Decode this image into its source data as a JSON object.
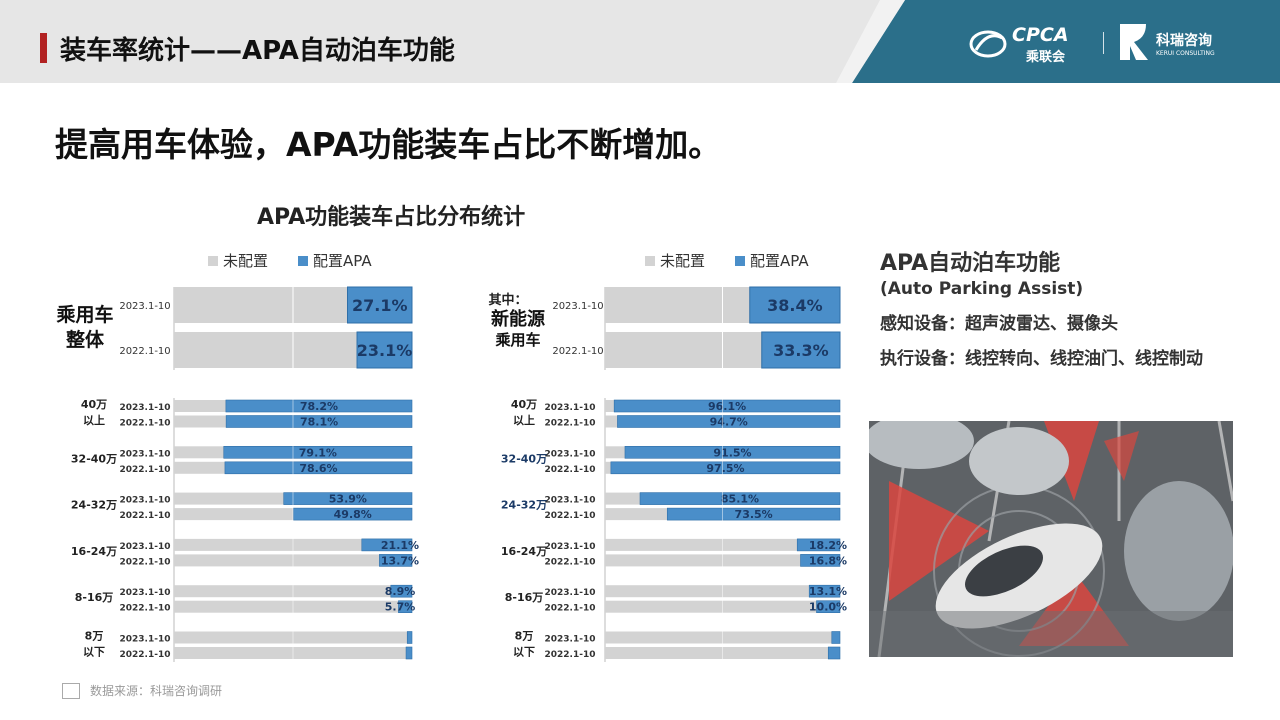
{
  "header": {
    "title": "装车率统计——APA自动泊车功能",
    "logo_cpca": "CPCA",
    "logo_cpca_sub": "乘联会",
    "logo_kerui": "科瑞咨询",
    "logo_kerui_sub": "KERUI CONSULTING"
  },
  "headline": "提高用车体验，APA功能装车占比不断增加。",
  "chart_title": "APA功能装车占比分布统计",
  "legend": {
    "not_configured": "未配置",
    "configured": "配置APA"
  },
  "colors": {
    "configured": "#4a8ec9",
    "not_configured": "#d3d3d3",
    "header_bg": "#e6e6e6",
    "header_teal": "#2b6f8a",
    "accent": "#b22222"
  },
  "info": {
    "title": "APA自动泊车功能",
    "subtitle": "(Auto Parking Assist)",
    "sensing": "感知设备：超声波雷达、摄像头",
    "actuation": "执行设备：线控转向、线控油门、线控制动"
  },
  "footer": {
    "source": "数据来源：科瑞咨询调研"
  },
  "chart_data": [
    {
      "type": "bar",
      "orientation": "horizontal",
      "stacked_percent": true,
      "group_label": [
        "乘用车",
        "整体"
      ],
      "series": [
        {
          "name": "未配置"
        },
        {
          "name": "配置APA"
        }
      ],
      "overall": [
        {
          "period": "2023.1-10",
          "value": 27.1,
          "label": "27.1%"
        },
        {
          "period": "2022.1-10",
          "value": 23.1,
          "label": "23.1%"
        }
      ],
      "segments": [
        {
          "name": [
            "40万",
            "以上"
          ],
          "rows": [
            {
              "period": "2023.1-10",
              "value": 78.2,
              "label": "78.2%"
            },
            {
              "period": "2022.1-10",
              "value": 78.1,
              "label": "78.1%"
            }
          ]
        },
        {
          "name": [
            "32-40万"
          ],
          "rows": [
            {
              "period": "2023.1-10",
              "value": 79.1,
              "label": "79.1%"
            },
            {
              "period": "2022.1-10",
              "value": 78.6,
              "label": "78.6%"
            }
          ]
        },
        {
          "name": [
            "24-32万"
          ],
          "rows": [
            {
              "period": "2023.1-10",
              "value": 53.9,
              "label": "53.9%"
            },
            {
              "period": "2022.1-10",
              "value": 49.8,
              "label": "49.8%"
            }
          ]
        },
        {
          "name": [
            "16-24万"
          ],
          "rows": [
            {
              "period": "2023.1-10",
              "value": 21.1,
              "label": "21.1%"
            },
            {
              "period": "2022.1-10",
              "value": 13.7,
              "label": "13.7%"
            }
          ]
        },
        {
          "name": [
            "8-16万"
          ],
          "rows": [
            {
              "period": "2023.1-10",
              "value": 8.9,
              "label": "8.9%"
            },
            {
              "period": "2022.1-10",
              "value": 5.7,
              "label": "5.7%"
            }
          ]
        },
        {
          "name": [
            "8万",
            "以下"
          ],
          "rows": [
            {
              "period": "2023.1-10",
              "value": 2.0,
              "label": ""
            },
            {
              "period": "2022.1-10",
              "value": 2.5,
              "label": ""
            }
          ]
        }
      ]
    },
    {
      "type": "bar",
      "orientation": "horizontal",
      "stacked_percent": true,
      "group_prefix": "其中：",
      "group_label": [
        "新能源",
        "乘用车"
      ],
      "series": [
        {
          "name": "未配置"
        },
        {
          "name": "配置APA"
        }
      ],
      "overall": [
        {
          "period": "2023.1-10",
          "value": 38.4,
          "label": "38.4%"
        },
        {
          "period": "2022.1-10",
          "value": 33.3,
          "label": "33.3%"
        }
      ],
      "segments": [
        {
          "name": [
            "40万",
            "以上"
          ],
          "rows": [
            {
              "period": "2023.1-10",
              "value": 96.1,
              "label": "96.1%"
            },
            {
              "period": "2022.1-10",
              "value": 94.7,
              "label": "94.7%"
            }
          ]
        },
        {
          "name": [
            "32-40万"
          ],
          "rows": [
            {
              "period": "2023.1-10",
              "value": 91.5,
              "label": "91.5%"
            },
            {
              "period": "2022.1-10",
              "value": 97.5,
              "label": "97.5%"
            }
          ]
        },
        {
          "name": [
            "24-32万"
          ],
          "rows": [
            {
              "period": "2023.1-10",
              "value": 85.1,
              "label": "85.1%"
            },
            {
              "period": "2022.1-10",
              "value": 73.5,
              "label": "73.5%"
            }
          ]
        },
        {
          "name": [
            "16-24万"
          ],
          "rows": [
            {
              "period": "2023.1-10",
              "value": 18.2,
              "label": "18.2%"
            },
            {
              "period": "2022.1-10",
              "value": 16.8,
              "label": "16.8%"
            }
          ]
        },
        {
          "name": [
            "8-16万"
          ],
          "rows": [
            {
              "period": "2023.1-10",
              "value": 13.1,
              "label": "13.1%"
            },
            {
              "period": "2022.1-10",
              "value": 10.0,
              "label": "10.0%"
            }
          ]
        },
        {
          "name": [
            "8万",
            "以下"
          ],
          "rows": [
            {
              "period": "2023.1-10",
              "value": 3.5,
              "label": ""
            },
            {
              "period": "2022.1-10",
              "value": 5.0,
              "label": ""
            }
          ]
        }
      ]
    }
  ]
}
